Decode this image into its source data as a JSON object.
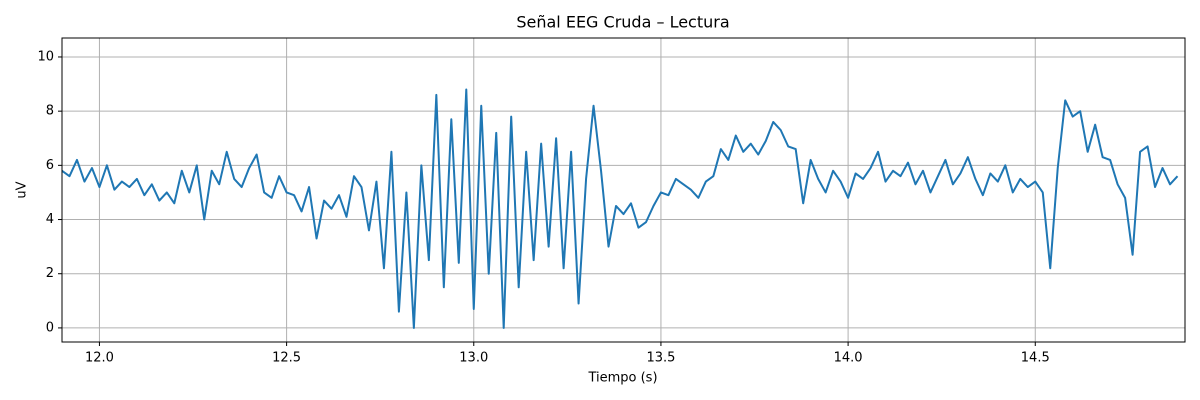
{
  "chart_data": {
    "type": "line",
    "title": "Señal EEG Cruda – Lectura",
    "xlabel": "Tiempo (s)",
    "ylabel": "uV",
    "xlim": [
      11.9,
      14.9
    ],
    "ylim": [
      -0.52,
      10.7
    ],
    "xticks": [
      {
        "value": 12,
        "label": "12.0"
      },
      12.5,
      {
        "value": 13,
        "label": "13.0"
      },
      13.5,
      {
        "value": 14,
        "label": "14.0"
      },
      14.5
    ],
    "yticks": [
      0,
      2,
      4,
      6,
      8,
      10
    ],
    "grid": true,
    "series": [
      {
        "color": "#1f77b4",
        "x": [
          11.9,
          11.92,
          11.94,
          11.96,
          11.98,
          12.0,
          12.02,
          12.04,
          12.06,
          12.08,
          12.1,
          12.12,
          12.14,
          12.16,
          12.18,
          12.2,
          12.22,
          12.24,
          12.26,
          12.28,
          12.3,
          12.32,
          12.34,
          12.36,
          12.38,
          12.4,
          12.42,
          12.44,
          12.46,
          12.48,
          12.5,
          12.52,
          12.54,
          12.56,
          12.58,
          12.6,
          12.62,
          12.64,
          12.66,
          12.68,
          12.7,
          12.72,
          12.74,
          12.76,
          12.78,
          12.8,
          12.82,
          12.84,
          12.86,
          12.88,
          12.9,
          12.92,
          12.94,
          12.96,
          12.98,
          13.0,
          13.02,
          13.04,
          13.06,
          13.08,
          13.1,
          13.12,
          13.14,
          13.16,
          13.18,
          13.2,
          13.22,
          13.24,
          13.26,
          13.28,
          13.3,
          13.32,
          13.34,
          13.36,
          13.38,
          13.4,
          13.42,
          13.44,
          13.46,
          13.48,
          13.5,
          13.52,
          13.54,
          13.56,
          13.58,
          13.6,
          13.62,
          13.64,
          13.66,
          13.68,
          13.7,
          13.72,
          13.74,
          13.76,
          13.78,
          13.8,
          13.82,
          13.84,
          13.86,
          13.88,
          13.9,
          13.92,
          13.94,
          13.96,
          13.98,
          14.0,
          14.02,
          14.04,
          14.06,
          14.08,
          14.1,
          14.12,
          14.14,
          14.16,
          14.18,
          14.2,
          14.22,
          14.24,
          14.26,
          14.28,
          14.3,
          14.32,
          14.34,
          14.36,
          14.38,
          14.4,
          14.42,
          14.44,
          14.46,
          14.48,
          14.5,
          14.52,
          14.54,
          14.56,
          14.58,
          14.6,
          14.62,
          14.64,
          14.66,
          14.68,
          14.7,
          14.72,
          14.74,
          14.76,
          14.78,
          14.8,
          14.82,
          14.84,
          14.86,
          14.88
        ],
        "values": [
          5.8,
          5.6,
          6.2,
          5.4,
          5.9,
          5.2,
          6.0,
          5.1,
          5.4,
          5.2,
          5.5,
          4.9,
          5.3,
          4.7,
          5.0,
          4.6,
          5.8,
          5.0,
          6.0,
          4.0,
          5.8,
          5.3,
          6.5,
          5.5,
          5.2,
          5.9,
          6.4,
          5.0,
          4.8,
          5.6,
          5.0,
          4.9,
          4.3,
          5.2,
          3.3,
          4.7,
          4.4,
          4.9,
          4.1,
          5.6,
          5.2,
          3.6,
          5.4,
          2.2,
          6.5,
          0.6,
          5.0,
          0.0,
          6.0,
          2.5,
          8.6,
          1.5,
          7.7,
          2.4,
          8.8,
          0.7,
          8.2,
          2.0,
          7.2,
          0.0,
          7.8,
          1.5,
          6.5,
          2.5,
          6.8,
          3.0,
          7.0,
          2.2,
          6.5,
          0.9,
          5.5,
          8.2,
          5.8,
          3.0,
          4.5,
          4.2,
          4.6,
          3.7,
          3.9,
          4.5,
          5.0,
          4.9,
          5.5,
          5.3,
          5.1,
          4.8,
          5.4,
          5.6,
          6.6,
          6.2,
          7.1,
          6.5,
          6.8,
          6.4,
          6.9,
          7.6,
          7.3,
          6.7,
          6.6,
          4.6,
          6.2,
          5.5,
          5.0,
          5.8,
          5.4,
          4.8,
          5.7,
          5.5,
          5.9,
          6.5,
          5.4,
          5.8,
          5.6,
          6.1,
          5.3,
          5.8,
          5.0,
          5.6,
          6.2,
          5.3,
          5.7,
          6.3,
          5.5,
          4.9,
          5.7,
          5.4,
          6.0,
          5.0,
          5.5,
          5.2,
          5.4,
          5.0,
          2.2,
          5.9,
          8.4,
          7.8,
          8.0,
          6.5,
          7.5,
          6.3,
          6.2,
          5.3,
          4.8,
          2.7,
          6.5,
          6.7,
          5.2,
          5.9,
          5.3,
          5.6
        ]
      }
    ]
  }
}
